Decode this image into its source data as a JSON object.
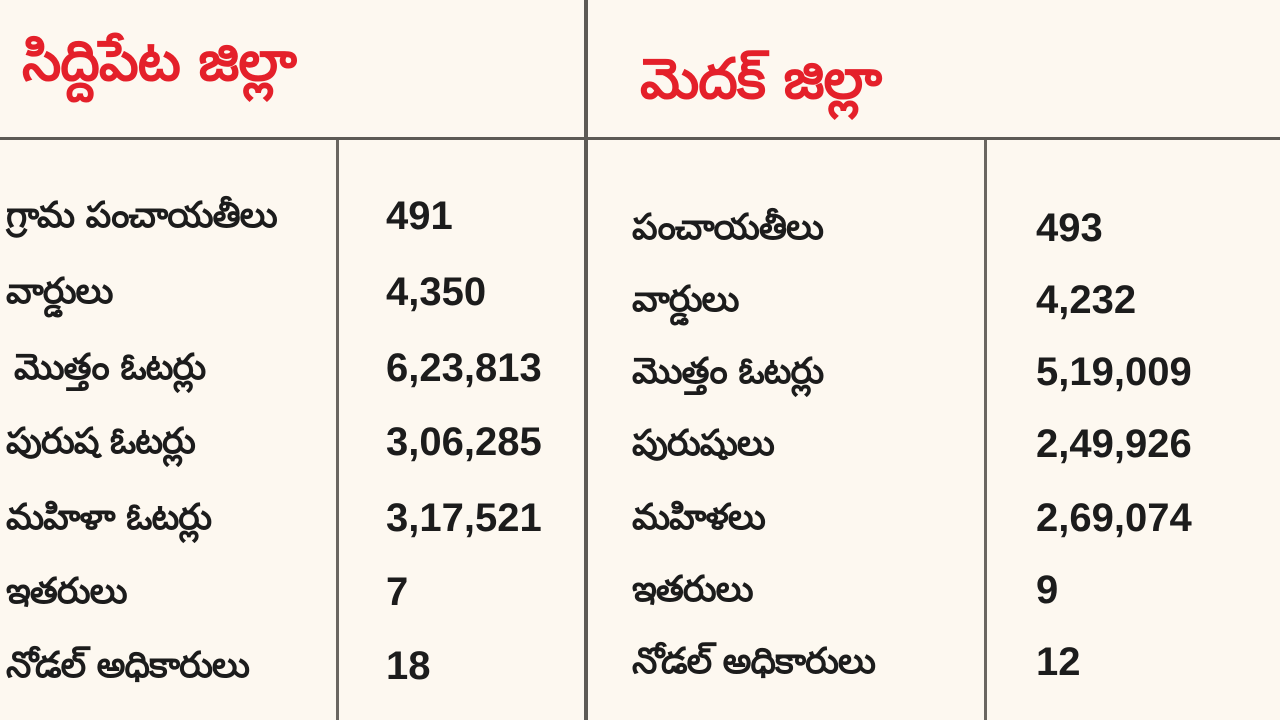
{
  "siddipet": {
    "title": "సిద్దిపేట జిల్లా",
    "rows": [
      {
        "label": "గ్రామ పంచాయతీలు",
        "value": "491"
      },
      {
        "label": "వార్డులు",
        "value": "4,350"
      },
      {
        "label": "మొత్తం ఓటర్లు",
        "value": "6,23,813"
      },
      {
        "label": "పురుష ఓటర్లు",
        "value": "3,06,285"
      },
      {
        "label": "మహిళా ఓటర్లు",
        "value": "3,17,521"
      },
      {
        "label": "ఇతరులు",
        "value": "7"
      },
      {
        "label": "నోడల్ అధికారులు",
        "value": "18"
      }
    ]
  },
  "medak": {
    "title": "మెదక్ జిల్లా",
    "rows": [
      {
        "label": "పంచాయతీలు",
        "value": "493"
      },
      {
        "label": "వార్డులు",
        "value": "4,232"
      },
      {
        "label": "మొత్తం ఓటర్లు",
        "value": "5,19,009"
      },
      {
        "label": "పురుషులు",
        "value": "2,49,926"
      },
      {
        "label": "మహిళలు",
        "value": "2,69,074"
      },
      {
        "label": "ఇతరులు",
        "value": "9"
      },
      {
        "label": "నోడల్ అధికారులు",
        "value": "12"
      }
    ]
  },
  "colors": {
    "title_red": "#e4202a",
    "background": "#fdf8f0",
    "rule": "#5d5a55",
    "text": "#1c1c1c"
  }
}
